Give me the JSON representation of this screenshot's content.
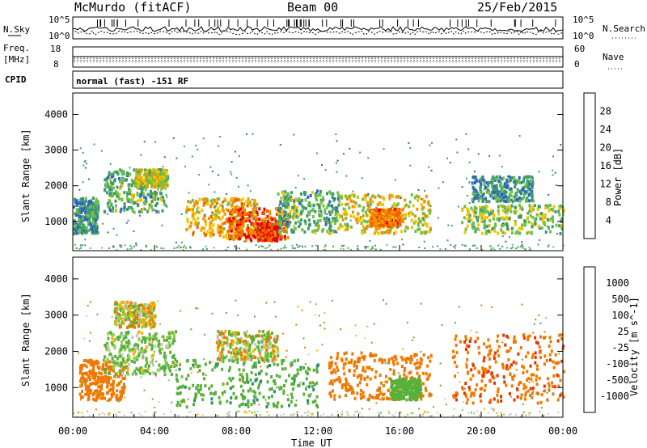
{
  "header": {
    "station": "McMurdo (fitACF)",
    "beam": "Beam 00",
    "date": "25/Feb/2015"
  },
  "top_panels": {
    "nsky_label": "N.Sky",
    "nsearch_label": "N.Search",
    "noise_ticks_left": [
      "10^5",
      "10^0"
    ],
    "noise_ticks_right": [
      "10^5",
      "10^0"
    ],
    "freq_label_1": "Freq.",
    "freq_label_2": "[MHz]",
    "freq_ticks": [
      "18",
      "8"
    ],
    "nave_label": "Nave",
    "nave_ticks": [
      "60",
      "0"
    ],
    "cpid_label": "CPID",
    "cpid_text": "normal (fast) -151 RF"
  },
  "chart_data": [
    {
      "type": "heatmap",
      "title": "",
      "xlabel": "Time UT",
      "ylabel": "Slant Range [km]",
      "x_ticks": [
        "00:00",
        "04:00",
        "08:00",
        "12:00",
        "16:00",
        "20:00",
        "00:00"
      ],
      "x_range_hours": [
        0,
        24
      ],
      "y_ticks": [
        1000,
        2000,
        3000,
        4000
      ],
      "ylim": [
        180,
        4600
      ],
      "colorbar": {
        "label": "Power [dB]",
        "ticks": [
          4,
          8,
          12,
          16,
          20,
          24,
          28
        ],
        "range": [
          0,
          32
        ],
        "colors": [
          "#0c1cf0",
          "#2e62c4",
          "#3a9a6e",
          "#6fbf4a",
          "#f2c300",
          "#f39000",
          "#f06000",
          "#e60000"
        ]
      },
      "echo_regions": [
        {
          "t0": 0.0,
          "t1": 1.2,
          "r0": 700,
          "r1": 1700,
          "level": 10
        },
        {
          "t0": 1.5,
          "t1": 4.5,
          "r0": 1300,
          "r1": 2500,
          "level": 12
        },
        {
          "t0": 3.0,
          "t1": 4.6,
          "r0": 2000,
          "r1": 2500,
          "level": 16
        },
        {
          "t0": 5.5,
          "t1": 9.0,
          "r0": 550,
          "r1": 1700,
          "level": 20
        },
        {
          "t0": 7.5,
          "t1": 10.5,
          "r0": 500,
          "r1": 1400,
          "level": 26
        },
        {
          "t0": 9.0,
          "t1": 10.0,
          "r0": 500,
          "r1": 1000,
          "level": 28
        },
        {
          "t0": 10.0,
          "t1": 13.0,
          "r0": 700,
          "r1": 1900,
          "level": 12
        },
        {
          "t0": 13.0,
          "t1": 17.5,
          "r0": 700,
          "r1": 1800,
          "level": 18
        },
        {
          "t0": 14.5,
          "t1": 16.0,
          "r0": 900,
          "r1": 1400,
          "level": 24
        },
        {
          "t0": 19.0,
          "t1": 24.0,
          "r0": 700,
          "r1": 1500,
          "level": 14
        },
        {
          "t0": 19.5,
          "t1": 22.5,
          "r0": 1600,
          "r1": 2300,
          "level": 10
        }
      ]
    },
    {
      "type": "heatmap",
      "title": "",
      "xlabel": "Time UT",
      "ylabel": "Slant Range [km]",
      "x_ticks": [
        "00:00",
        "04:00",
        "08:00",
        "12:00",
        "16:00",
        "20:00",
        "00:00"
      ],
      "x_range_hours": [
        0,
        24
      ],
      "y_ticks": [
        1000,
        2000,
        3000,
        4000
      ],
      "ylim": [
        180,
        4600
      ],
      "colorbar": {
        "label": "Velocity [m s^-1]",
        "ticks": [
          1000,
          500,
          100,
          25,
          -25,
          -100,
          -500,
          -1000
        ],
        "colors": [
          "#1a3fb8",
          "#2e8f6a",
          "#58b03c",
          "#8fd04c",
          "#c8c8c8",
          "#f5b300",
          "#f07800",
          "#e83000",
          "#e60000"
        ]
      },
      "echo_regions": [
        {
          "t0": 0.3,
          "t1": 2.5,
          "r0": 700,
          "r1": 1800,
          "vel": -300
        },
        {
          "t0": 1.5,
          "t1": 5.0,
          "r0": 1400,
          "r1": 2600,
          "vel": 150
        },
        {
          "t0": 2.0,
          "t1": 4.0,
          "r0": 2700,
          "r1": 3400,
          "vel": 0
        },
        {
          "t0": 5.0,
          "t1": 12.0,
          "r0": 500,
          "r1": 1800,
          "vel": 350
        },
        {
          "t0": 7.0,
          "t1": 10.0,
          "r0": 1800,
          "r1": 2600,
          "vel": 0
        },
        {
          "t0": 12.5,
          "t1": 17.5,
          "r0": 700,
          "r1": 2000,
          "vel": -300
        },
        {
          "t0": 15.5,
          "t1": 17.0,
          "r0": 700,
          "r1": 1300,
          "vel": 300
        },
        {
          "t0": 18.5,
          "t1": 24.0,
          "r0": 600,
          "r1": 2500,
          "vel": -400
        }
      ]
    }
  ]
}
